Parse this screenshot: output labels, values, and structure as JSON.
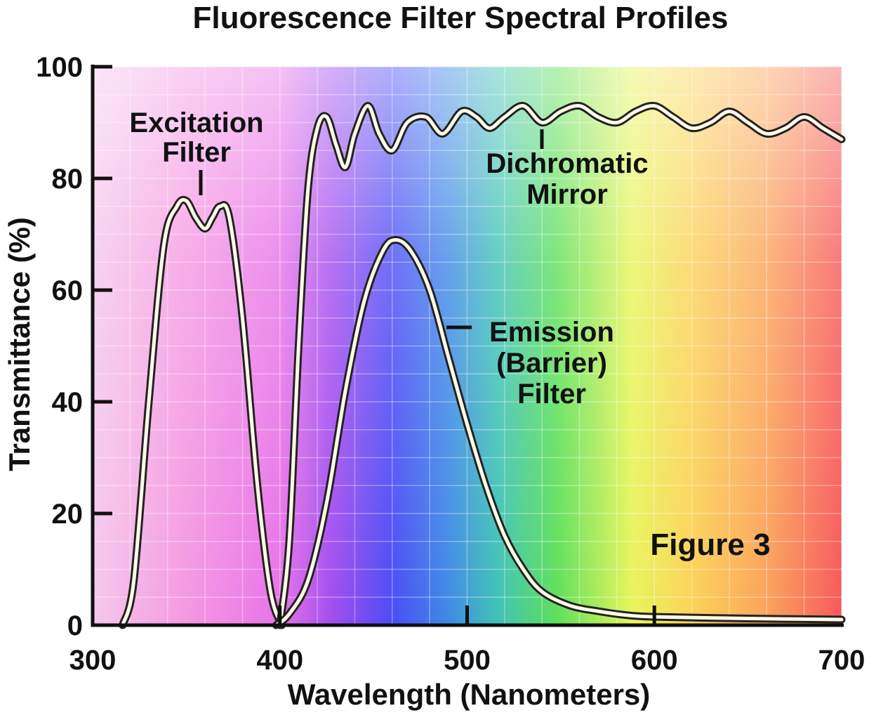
{
  "chart_data": {
    "type": "line",
    "title": "Fluorescence Filter Spectral Profiles",
    "xlabel": "Wavelength (Nanometers)",
    "ylabel": "Transmittance (%)",
    "xlim": [
      300,
      700
    ],
    "ylim": [
      0,
      100
    ],
    "xticks": [
      "300",
      "400",
      "500",
      "600",
      "700"
    ],
    "yticks": [
      "0",
      "20",
      "40",
      "60",
      "80",
      "100"
    ],
    "grid": true,
    "annotation": "Figure 3",
    "series": [
      {
        "name": "Excitation Filter",
        "label_lines": [
          "Excitation",
          "Filter"
        ],
        "x": [
          316,
          322,
          330,
          338,
          345,
          350,
          355,
          360,
          364,
          368,
          373,
          380,
          388,
          395,
          401
        ],
        "y": [
          0,
          8,
          40,
          68,
          75,
          76,
          73,
          71,
          73,
          75,
          73,
          55,
          25,
          6,
          0
        ]
      },
      {
        "name": "Dichromatic Mirror",
        "label_lines": [
          "Dichromatic",
          "Mirror"
        ],
        "x": [
          400,
          405,
          410,
          415,
          420,
          425,
          430,
          435,
          440,
          447,
          453,
          460,
          468,
          478,
          487,
          497,
          505,
          512,
          520,
          530,
          540,
          550,
          560,
          570,
          580,
          590,
          600,
          610,
          620,
          630,
          640,
          650,
          660,
          670,
          680,
          690,
          700
        ],
        "y": [
          0,
          15,
          50,
          78,
          89,
          91,
          86,
          82,
          88,
          93,
          88,
          85,
          90,
          91,
          88,
          92,
          91,
          89,
          91,
          93,
          90,
          92,
          93,
          91,
          90,
          92,
          93,
          91,
          89,
          90,
          92,
          90,
          88,
          89,
          91,
          89,
          87
        ]
      },
      {
        "name": "Emission (Barrier) Filter",
        "label_lines": [
          "Emission",
          "(Barrier)",
          "Filter"
        ],
        "x": [
          398,
          405,
          415,
          425,
          435,
          445,
          455,
          462,
          470,
          480,
          490,
          500,
          510,
          520,
          530,
          540,
          555,
          570,
          585,
          600,
          650,
          700
        ],
        "y": [
          0,
          2,
          8,
          22,
          42,
          58,
          67,
          69,
          67,
          60,
          48,
          36,
          25,
          16,
          10,
          6,
          3.5,
          2.5,
          1.8,
          1.5,
          1.2,
          1
        ]
      }
    ]
  }
}
